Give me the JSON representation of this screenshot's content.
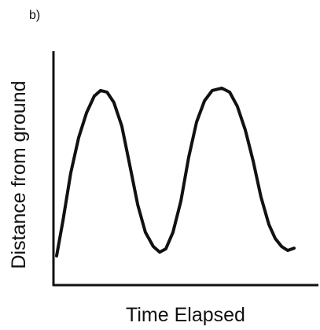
{
  "chart_data": {
    "type": "line",
    "panel_label": "b)",
    "xlabel": "Time Elapsed",
    "ylabel": "Distance from ground",
    "x": [
      1.2,
      3.6,
      6.5,
      9.5,
      12.5,
      15.4,
      17.8,
      20.2,
      22.8,
      25.8,
      28.8,
      31.8,
      34.7,
      37.7,
      40.1,
      42.4,
      45.1,
      48.1,
      51.0,
      54.0,
      57.0,
      59.9,
      63.5,
      66.5,
      69.4,
      72.4,
      75.4,
      78.3,
      81.3,
      83.7,
      86.1,
      88.4,
      90.8
    ],
    "values": [
      12.5,
      27.6,
      47.8,
      63.0,
      73.7,
      80.8,
      83.2,
      82.5,
      78.1,
      68.0,
      51.2,
      34.3,
      22.6,
      16.5,
      14.1,
      15.5,
      22.6,
      36.0,
      54.5,
      69.7,
      78.8,
      83.2,
      84.2,
      82.5,
      76.4,
      66.3,
      52.9,
      37.7,
      25.9,
      19.9,
      16.5,
      14.8,
      15.8
    ],
    "color": "#111111",
    "xlim": [
      0,
      100
    ],
    "ylim": [
      0,
      100
    ]
  }
}
